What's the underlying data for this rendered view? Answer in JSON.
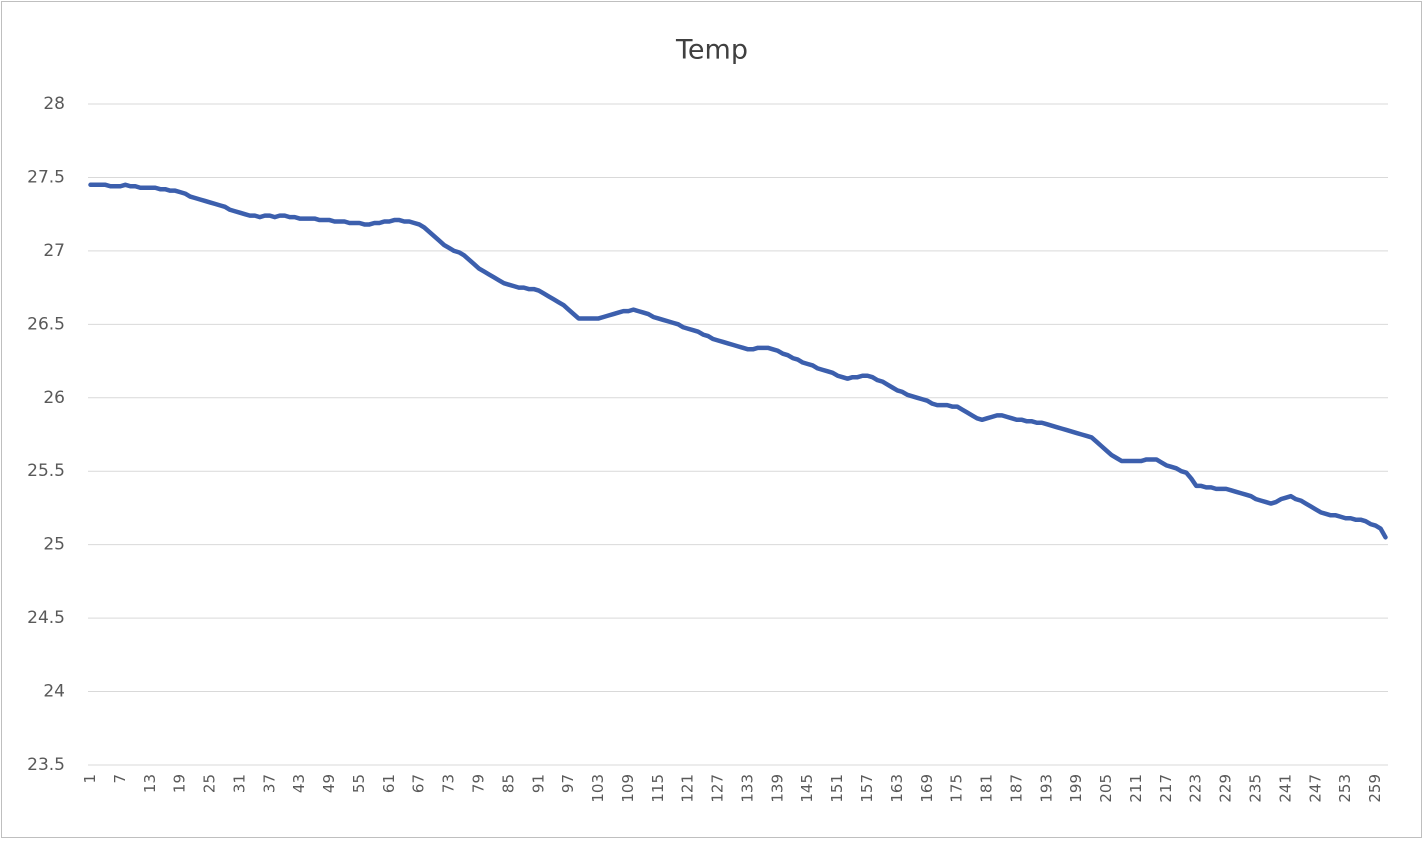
{
  "chart_data": {
    "type": "line",
    "title": "Temp",
    "categories": [
      1,
      null,
      null,
      null,
      null,
      null,
      7,
      null,
      null,
      null,
      null,
      null,
      13,
      null,
      null,
      null,
      null,
      null,
      19,
      null,
      null,
      null,
      null,
      null,
      25,
      null,
      null,
      null,
      null,
      null,
      31,
      null,
      null,
      null,
      null,
      null,
      37,
      null,
      null,
      null,
      null,
      null,
      43,
      null,
      null,
      null,
      null,
      null,
      49,
      null,
      null,
      null,
      null,
      null,
      55,
      null,
      null,
      null,
      null,
      null,
      61,
      null,
      null,
      null,
      null,
      null,
      67,
      null,
      null,
      null,
      null,
      null,
      73,
      null,
      null,
      null,
      null,
      null,
      79,
      null,
      null,
      null,
      null,
      null,
      85,
      null,
      null,
      null,
      null,
      null,
      91,
      null,
      null,
      null,
      null,
      null,
      97,
      null,
      null,
      null,
      null,
      null,
      103,
      null,
      null,
      null,
      null,
      null,
      109,
      null,
      null,
      null,
      null,
      null,
      115,
      null,
      null,
      null,
      null,
      null,
      121,
      null,
      null,
      null,
      null,
      null,
      127,
      null,
      null,
      null,
      null,
      null,
      133,
      null,
      null,
      null,
      null,
      null,
      139,
      null,
      null,
      null,
      null,
      null,
      145,
      null,
      null,
      null,
      null,
      null,
      151,
      null,
      null,
      null,
      null,
      null,
      157,
      null,
      null,
      null,
      null,
      null,
      163,
      null,
      null,
      null,
      null,
      null,
      169,
      null,
      null,
      null,
      null,
      null,
      175,
      null,
      null,
      null,
      null,
      null,
      181,
      null,
      null,
      null,
      null,
      null,
      187,
      null,
      null,
      null,
      null,
      null,
      193,
      null,
      null,
      null,
      null,
      null,
      199,
      null,
      null,
      null,
      null,
      null,
      205,
      null,
      null,
      null,
      null,
      null,
      211,
      null,
      null,
      null,
      null,
      null,
      217,
      null,
      null,
      null,
      null,
      null,
      223,
      null,
      null,
      null,
      null,
      null,
      229,
      null,
      null,
      null,
      null,
      null,
      235,
      null,
      null,
      null,
      null,
      null,
      241,
      null,
      null,
      null,
      null,
      null,
      247,
      null,
      null,
      null,
      null,
      null,
      253,
      null,
      null,
      null,
      null,
      null,
      259,
      null,
      null
    ],
    "values": [
      27.45,
      27.45,
      27.45,
      27.45,
      27.44,
      27.44,
      27.44,
      27.45,
      27.44,
      27.44,
      27.43,
      27.43,
      27.43,
      27.43,
      27.42,
      27.42,
      27.41,
      27.41,
      27.4,
      27.39,
      27.37,
      27.36,
      27.35,
      27.34,
      27.33,
      27.32,
      27.31,
      27.3,
      27.28,
      27.27,
      27.26,
      27.25,
      27.24,
      27.24,
      27.23,
      27.24,
      27.24,
      27.23,
      27.24,
      27.24,
      27.23,
      27.23,
      27.22,
      27.22,
      27.22,
      27.22,
      27.21,
      27.21,
      27.21,
      27.2,
      27.2,
      27.2,
      27.19,
      27.19,
      27.19,
      27.18,
      27.18,
      27.19,
      27.19,
      27.2,
      27.2,
      27.21,
      27.21,
      27.2,
      27.2,
      27.19,
      27.18,
      27.16,
      27.13,
      27.1,
      27.07,
      27.04,
      27.02,
      27.0,
      26.99,
      26.97,
      26.94,
      26.91,
      26.88,
      26.86,
      26.84,
      26.82,
      26.8,
      26.78,
      26.77,
      26.76,
      26.75,
      26.75,
      26.74,
      26.74,
      26.73,
      26.71,
      26.69,
      26.67,
      26.65,
      26.63,
      26.6,
      26.57,
      26.54,
      26.54,
      26.54,
      26.54,
      26.54,
      26.55,
      26.56,
      26.57,
      26.58,
      26.59,
      26.59,
      26.6,
      26.59,
      26.58,
      26.57,
      26.55,
      26.54,
      26.53,
      26.52,
      26.51,
      26.5,
      26.48,
      26.47,
      26.46,
      26.45,
      26.43,
      26.42,
      26.4,
      26.39,
      26.38,
      26.37,
      26.36,
      26.35,
      26.34,
      26.33,
      26.33,
      26.34,
      26.34,
      26.34,
      26.33,
      26.32,
      26.3,
      26.29,
      26.27,
      26.26,
      26.24,
      26.23,
      26.22,
      26.2,
      26.19,
      26.18,
      26.17,
      26.15,
      26.14,
      26.13,
      26.14,
      26.14,
      26.15,
      26.15,
      26.14,
      26.12,
      26.11,
      26.09,
      26.07,
      26.05,
      26.04,
      26.02,
      26.01,
      26.0,
      25.99,
      25.98,
      25.96,
      25.95,
      25.95,
      25.95,
      25.94,
      25.94,
      25.92,
      25.9,
      25.88,
      25.86,
      25.85,
      25.86,
      25.87,
      25.88,
      25.88,
      25.87,
      25.86,
      25.85,
      25.85,
      25.84,
      25.84,
      25.83,
      25.83,
      25.82,
      25.81,
      25.8,
      25.79,
      25.78,
      25.77,
      25.76,
      25.75,
      25.74,
      25.73,
      25.7,
      25.67,
      25.64,
      25.61,
      25.59,
      25.57,
      25.57,
      25.57,
      25.57,
      25.57,
      25.58,
      25.58,
      25.58,
      25.56,
      25.54,
      25.53,
      25.52,
      25.5,
      25.49,
      25.45,
      25.4,
      25.4,
      25.39,
      25.39,
      25.38,
      25.38,
      25.38,
      25.37,
      25.36,
      25.35,
      25.34,
      25.33,
      25.31,
      25.3,
      25.29,
      25.28,
      25.29,
      25.31,
      25.32,
      25.33,
      25.31,
      25.3,
      25.28,
      25.26,
      25.24,
      25.22,
      25.21,
      25.2,
      25.2,
      25.19,
      25.18,
      25.18,
      25.17,
      25.17,
      25.16,
      25.14,
      25.13,
      25.11,
      25.05
    ],
    "color": "#3c5fad",
    "ylim": [
      23.5,
      28
    ],
    "yticks": [
      23.5,
      24,
      24.5,
      25,
      25.5,
      26,
      26.5,
      27,
      27.5,
      28
    ],
    "grid": true
  }
}
